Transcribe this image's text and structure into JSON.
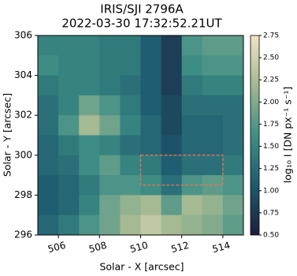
{
  "chart_data": {
    "type": "heatmap",
    "title": "IRIS/SJI 2796A",
    "subtitle": "2022-03-30 17:32:52.21UT",
    "x_label": "Solar - X [arcsec]",
    "y_label": "Solar - Y [arcsec]",
    "colorbar_label": "log₁₀ I [DN px⁻¹ s⁻¹]",
    "xlim": [
      505,
      515
    ],
    "ylim": [
      296,
      306
    ],
    "xticks": [
      506,
      508,
      510,
      512,
      514
    ],
    "yticks": [
      296,
      298,
      300,
      302,
      304,
      306
    ],
    "clim": [
      0.5,
      2.75
    ],
    "cticks": [
      {
        "value": 0.5,
        "label": "0.50"
      },
      {
        "value": 0.75,
        "label": "0.75"
      },
      {
        "value": 1,
        "label": "1.00"
      },
      {
        "value": 1.25,
        "label": "1.25"
      },
      {
        "value": 1.5,
        "label": "1.50"
      },
      {
        "value": 1.75,
        "label": "1.75"
      },
      {
        "value": 2,
        "label": "2.00"
      },
      {
        "value": 2.25,
        "label": "2.25"
      },
      {
        "value": 2.5,
        "label": "2.50"
      },
      {
        "value": 2.75,
        "label": "2.75"
      }
    ],
    "colormap": [
      "#1c1f3a",
      "#1d5a6e",
      "#3f8f85",
      "#a3b891",
      "#f1e4c4"
    ],
    "x": [
      505.5,
      506.5,
      507.5,
      508.5,
      509.5,
      510.5,
      511.5,
      512.5,
      513.5,
      514.5
    ],
    "y": [
      305.5,
      304.5,
      303.5,
      302.5,
      301.5,
      300.5,
      299.5,
      298.5,
      297.5,
      296.5
    ],
    "z": [
      [
        1.5,
        1.5,
        1.5,
        1.4,
        1.4,
        1.1,
        0.8,
        1.7,
        1.8,
        1.8
      ],
      [
        1.6,
        1.5,
        1.5,
        1.4,
        1.4,
        1.1,
        0.8,
        1.6,
        1.7,
        1.7
      ],
      [
        1.4,
        1.5,
        1.5,
        1.4,
        1.3,
        1.1,
        0.8,
        1.4,
        1.5,
        1.5
      ],
      [
        1.3,
        1.5,
        1.9,
        1.7,
        1.4,
        1.1,
        0.9,
        1.3,
        1.3,
        1.3
      ],
      [
        1.3,
        1.7,
        2.2,
        1.9,
        1.5,
        1.2,
        0.9,
        1.2,
        1.2,
        1.3
      ],
      [
        1.2,
        1.4,
        1.6,
        1.5,
        1.3,
        1.2,
        1.0,
        1.2,
        1.2,
        1.3
      ],
      [
        1.2,
        1.3,
        1.6,
        1.8,
        1.5,
        1.4,
        1.1,
        1.3,
        1.3,
        1.4
      ],
      [
        1.1,
        1.2,
        1.4,
        1.7,
        1.7,
        1.6,
        1.3,
        1.7,
        1.8,
        1.7
      ],
      [
        1.1,
        1.2,
        1.5,
        1.9,
        2.1,
        2.2,
        1.8,
        2.2,
        2.1,
        1.9
      ],
      [
        1.2,
        1.4,
        1.7,
        1.9,
        2.2,
        2.4,
        2.2,
        2.1,
        2.0,
        1.8
      ]
    ],
    "box": {
      "x": [
        510,
        514
      ],
      "y": [
        298.5,
        300
      ],
      "color": "#e8735a"
    }
  }
}
